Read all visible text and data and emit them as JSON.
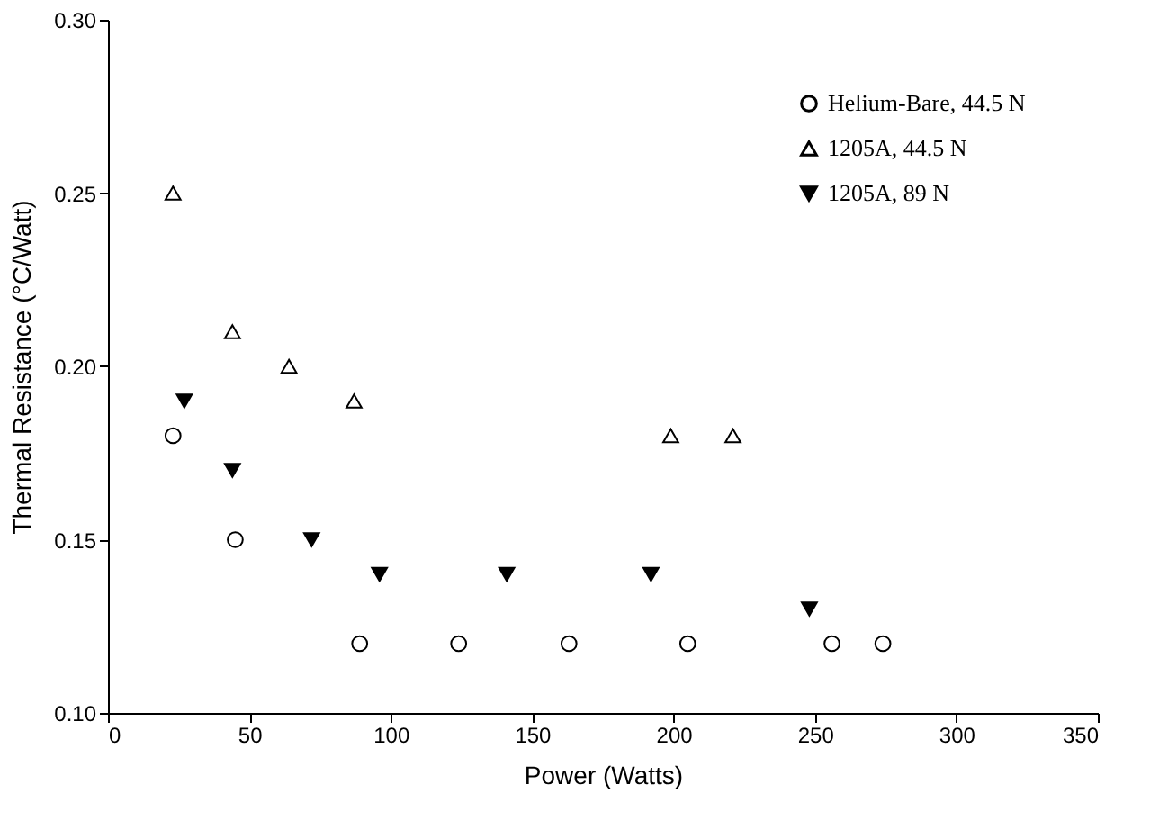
{
  "chart_data": {
    "type": "scatter",
    "xlabel": "Power (Watts)",
    "ylabel": "Thermal Resistance (°C/Watt)",
    "xlim": [
      0,
      350
    ],
    "xticks": [
      0,
      50,
      100,
      150,
      200,
      250,
      300,
      350
    ],
    "ylim": [
      0.1,
      0.3
    ],
    "yticks": [
      {
        "value": 0.1,
        "label": "0.10"
      },
      0.15,
      {
        "value": 0.2,
        "label": "0.20"
      },
      0.25,
      {
        "value": 0.3,
        "label": "0.30"
      }
    ],
    "grid": false,
    "legend": "top right",
    "series": [
      {
        "name": "Helium-Bare, 44.5 N",
        "color": "#000000",
        "marker": "circle",
        "x": [
          23,
          45,
          89,
          124,
          163,
          205,
          256,
          274
        ],
        "values": [
          0.18,
          0.15,
          0.12,
          0.12,
          0.12,
          0.12,
          0.12,
          0.12
        ]
      },
      {
        "name": "1205A, 44.5 N",
        "color": "#000000",
        "marker": "triangle",
        "x": [
          23,
          44,
          64,
          87,
          199,
          221
        ],
        "values": [
          0.25,
          0.21,
          0.2,
          0.19,
          0.18,
          0.18
        ]
      },
      {
        "name": "1205A, 89 N",
        "color": "#000000",
        "marker": "triangle-down",
        "x": [
          27,
          44,
          72,
          96,
          141,
          192,
          248
        ],
        "values": [
          0.19,
          0.17,
          0.15,
          0.14,
          0.14,
          0.14,
          0.13
        ]
      }
    ]
  }
}
